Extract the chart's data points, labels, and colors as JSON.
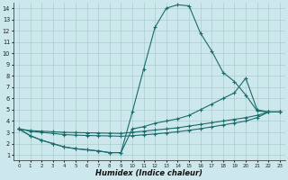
{
  "xlabel": "Humidex (Indice chaleur)",
  "bg_color": "#cce8ec",
  "grid_color": "#aacccc",
  "line_color": "#1a6b6b",
  "xlim": [
    -0.5,
    23.5
  ],
  "ylim": [
    0.5,
    14.5
  ],
  "xticks": [
    0,
    1,
    2,
    3,
    4,
    5,
    6,
    7,
    8,
    9,
    10,
    11,
    12,
    13,
    14,
    15,
    16,
    17,
    18,
    19,
    20,
    21,
    22,
    23
  ],
  "yticks": [
    1,
    2,
    3,
    4,
    5,
    6,
    7,
    8,
    9,
    10,
    11,
    12,
    13,
    14
  ],
  "curve1_x": [
    0,
    1,
    2,
    3,
    4,
    5,
    6,
    7,
    8,
    9,
    10,
    11,
    12,
    13,
    14,
    15,
    16,
    17,
    18,
    19,
    20,
    21,
    22,
    23
  ],
  "curve1_y": [
    3.3,
    2.7,
    2.3,
    2.0,
    1.7,
    1.55,
    1.45,
    1.35,
    1.2,
    1.2,
    4.8,
    8.6,
    12.3,
    14.0,
    14.3,
    14.2,
    11.8,
    10.2,
    8.3,
    7.5,
    6.3,
    4.9,
    4.8,
    4.8
  ],
  "curve2_x": [
    0,
    1,
    2,
    3,
    4,
    5,
    6,
    7,
    8,
    9,
    10,
    11,
    12,
    13,
    14,
    15,
    16,
    17,
    18,
    19,
    20,
    21,
    22,
    23
  ],
  "curve2_y": [
    3.3,
    2.7,
    2.3,
    2.0,
    1.7,
    1.55,
    1.45,
    1.35,
    1.2,
    1.2,
    3.3,
    3.5,
    3.8,
    4.0,
    4.2,
    4.5,
    5.0,
    5.5,
    6.0,
    6.5,
    7.8,
    5.0,
    4.8,
    4.8
  ],
  "curve3_x": [
    0,
    1,
    2,
    3,
    4,
    5,
    6,
    7,
    8,
    9,
    10,
    11,
    12,
    13,
    14,
    15,
    16,
    17,
    18,
    19,
    20,
    21,
    22,
    23
  ],
  "curve3_y": [
    3.3,
    3.15,
    3.1,
    3.05,
    3.0,
    2.98,
    2.96,
    2.94,
    2.92,
    2.9,
    3.0,
    3.1,
    3.2,
    3.3,
    3.4,
    3.55,
    3.7,
    3.85,
    4.0,
    4.15,
    4.3,
    4.5,
    4.8,
    4.8
  ],
  "curve4_x": [
    0,
    1,
    2,
    3,
    4,
    5,
    6,
    7,
    8,
    9,
    10,
    11,
    12,
    13,
    14,
    15,
    16,
    17,
    18,
    19,
    20,
    21,
    22,
    23
  ],
  "curve4_y": [
    3.3,
    3.1,
    3.0,
    2.9,
    2.8,
    2.75,
    2.72,
    2.7,
    2.68,
    2.65,
    2.7,
    2.78,
    2.85,
    2.95,
    3.05,
    3.18,
    3.32,
    3.48,
    3.65,
    3.82,
    4.0,
    4.3,
    4.8,
    4.8
  ]
}
